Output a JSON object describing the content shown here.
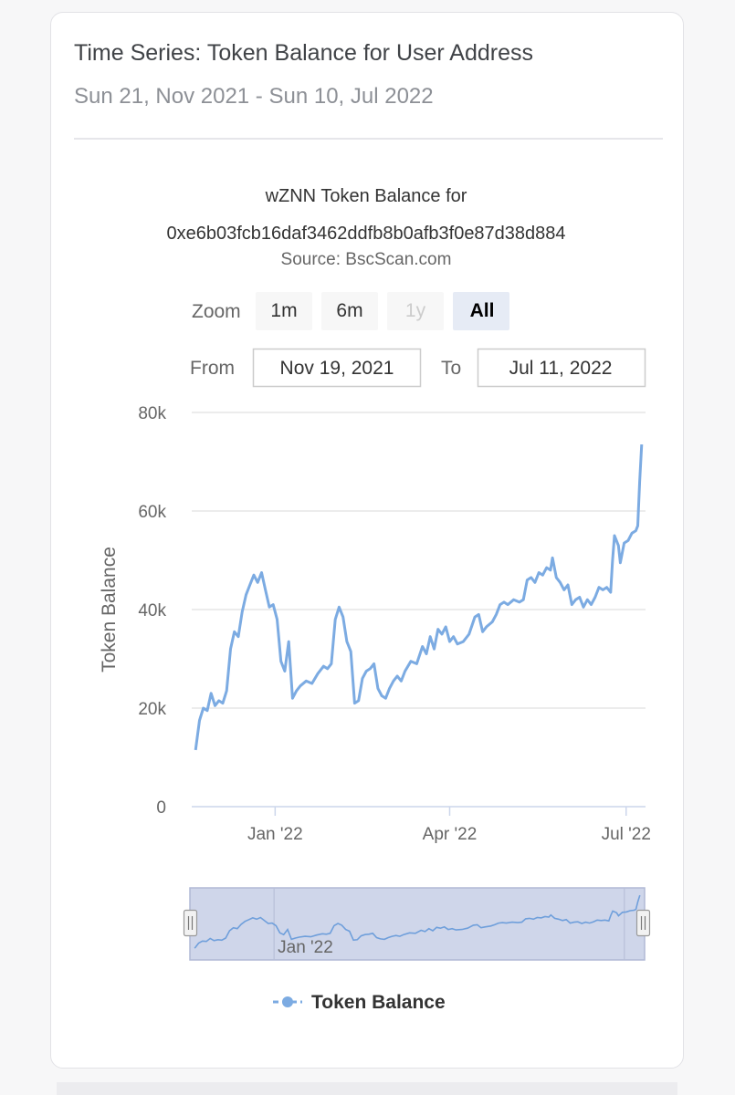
{
  "card": {
    "title": "Time Series: Token Balance for User Address",
    "subtitle": "Sun 21, Nov 2021 - Sun 10, Jul 2022"
  },
  "range_selector": {
    "zoom_label": "Zoom",
    "buttons": [
      {
        "label": "1m",
        "state": "normal"
      },
      {
        "label": "6m",
        "state": "normal"
      },
      {
        "label": "1y",
        "state": "disabled"
      },
      {
        "label": "All",
        "state": "selected"
      }
    ],
    "from_label": "From",
    "from_value": "Nov 19, 2021",
    "to_label": "To",
    "to_value": "Jul 11, 2022"
  },
  "colors": {
    "series": "#7cabe2",
    "navigator_fill": "#cfd6ea",
    "grid": "#e6e6e6"
  },
  "chart_data": {
    "type": "line",
    "title_line1": "wZNN Token Balance for",
    "title_line2": "0xe6b03fcb16daf3462ddfb8b0afb3f0e87d38d884",
    "subtitle": "Source: BscScan.com",
    "ylabel": "Token Balance",
    "ylim": [
      0,
      80000
    ],
    "yticks": [
      0,
      20000,
      40000,
      60000,
      80000
    ],
    "ytick_labels": [
      "0",
      "20k",
      "40k",
      "60k",
      "80k"
    ],
    "xlim": [
      "2021-11-19",
      "2022-07-11"
    ],
    "xticks": [
      {
        "date": "2022-01-01",
        "label": "Jan '22"
      },
      {
        "date": "2022-04-01",
        "label": "Apr '22"
      },
      {
        "date": "2022-07-01",
        "label": "Jul '22"
      }
    ],
    "navigator_label": "Jan '22",
    "legend": "Token Balance",
    "series": [
      {
        "name": "Token Balance",
        "points": [
          [
            "2021-11-21",
            11500
          ],
          [
            "2021-11-23",
            17500
          ],
          [
            "2021-11-25",
            20000
          ],
          [
            "2021-11-27",
            19500
          ],
          [
            "2021-11-29",
            23000
          ],
          [
            "2021-12-01",
            20500
          ],
          [
            "2021-12-03",
            21500
          ],
          [
            "2021-12-05",
            21000
          ],
          [
            "2021-12-07",
            23500
          ],
          [
            "2021-12-09",
            32000
          ],
          [
            "2021-12-11",
            35500
          ],
          [
            "2021-12-13",
            34500
          ],
          [
            "2021-12-15",
            39500
          ],
          [
            "2021-12-17",
            43000
          ],
          [
            "2021-12-19",
            45000
          ],
          [
            "2021-12-21",
            47000
          ],
          [
            "2021-12-23",
            45500
          ],
          [
            "2021-12-25",
            47500
          ],
          [
            "2021-12-27",
            44000
          ],
          [
            "2021-12-29",
            40500
          ],
          [
            "2021-12-31",
            41000
          ],
          [
            "2022-01-02",
            38000
          ],
          [
            "2022-01-04",
            29500
          ],
          [
            "2022-01-06",
            27500
          ],
          [
            "2022-01-08",
            33500
          ],
          [
            "2022-01-10",
            22000
          ],
          [
            "2022-01-12",
            23500
          ],
          [
            "2022-01-14",
            24500
          ],
          [
            "2022-01-17",
            25500
          ],
          [
            "2022-01-20",
            25000
          ],
          [
            "2022-01-23",
            27000
          ],
          [
            "2022-01-26",
            28500
          ],
          [
            "2022-01-28",
            28000
          ],
          [
            "2022-01-30",
            29000
          ],
          [
            "2022-02-01",
            38000
          ],
          [
            "2022-02-03",
            40500
          ],
          [
            "2022-02-05",
            38500
          ],
          [
            "2022-02-07",
            33500
          ],
          [
            "2022-02-09",
            31500
          ],
          [
            "2022-02-11",
            21000
          ],
          [
            "2022-02-13",
            21500
          ],
          [
            "2022-02-15",
            26000
          ],
          [
            "2022-02-17",
            27500
          ],
          [
            "2022-02-19",
            28000
          ],
          [
            "2022-02-21",
            29000
          ],
          [
            "2022-02-23",
            24000
          ],
          [
            "2022-02-25",
            22500
          ],
          [
            "2022-02-27",
            22000
          ],
          [
            "2022-03-01",
            24000
          ],
          [
            "2022-03-03",
            25500
          ],
          [
            "2022-03-05",
            26500
          ],
          [
            "2022-03-07",
            25500
          ],
          [
            "2022-03-09",
            27500
          ],
          [
            "2022-03-12",
            29500
          ],
          [
            "2022-03-15",
            29000
          ],
          [
            "2022-03-18",
            32500
          ],
          [
            "2022-03-20",
            31000
          ],
          [
            "2022-03-22",
            34500
          ],
          [
            "2022-03-24",
            32000
          ],
          [
            "2022-03-26",
            36000
          ],
          [
            "2022-03-28",
            35000
          ],
          [
            "2022-03-30",
            36500
          ],
          [
            "2022-04-01",
            33500
          ],
          [
            "2022-04-03",
            34500
          ],
          [
            "2022-04-05",
            33000
          ],
          [
            "2022-04-08",
            33500
          ],
          [
            "2022-04-11",
            35000
          ],
          [
            "2022-04-14",
            38500
          ],
          [
            "2022-04-16",
            39000
          ],
          [
            "2022-04-18",
            35500
          ],
          [
            "2022-04-20",
            36500
          ],
          [
            "2022-04-23",
            37500
          ],
          [
            "2022-04-25",
            39000
          ],
          [
            "2022-04-27",
            41000
          ],
          [
            "2022-04-29",
            41500
          ],
          [
            "2022-05-01",
            41000
          ],
          [
            "2022-05-04",
            42000
          ],
          [
            "2022-05-07",
            41500
          ],
          [
            "2022-05-09",
            42000
          ],
          [
            "2022-05-11",
            46000
          ],
          [
            "2022-05-13",
            46500
          ],
          [
            "2022-05-15",
            45500
          ],
          [
            "2022-05-17",
            47500
          ],
          [
            "2022-05-19",
            47000
          ],
          [
            "2022-05-21",
            48500
          ],
          [
            "2022-05-23",
            48000
          ],
          [
            "2022-05-24",
            50500
          ],
          [
            "2022-05-26",
            46500
          ],
          [
            "2022-05-28",
            45500
          ],
          [
            "2022-05-30",
            44000
          ],
          [
            "2022-06-01",
            45000
          ],
          [
            "2022-06-03",
            41000
          ],
          [
            "2022-06-05",
            42000
          ],
          [
            "2022-06-07",
            42500
          ],
          [
            "2022-06-09",
            40500
          ],
          [
            "2022-06-11",
            42000
          ],
          [
            "2022-06-13",
            41000
          ],
          [
            "2022-06-15",
            42500
          ],
          [
            "2022-06-17",
            44500
          ],
          [
            "2022-06-19",
            44000
          ],
          [
            "2022-06-21",
            44500
          ],
          [
            "2022-06-23",
            43500
          ],
          [
            "2022-06-24",
            50000
          ],
          [
            "2022-06-25",
            55000
          ],
          [
            "2022-06-27",
            53000
          ],
          [
            "2022-06-28",
            49500
          ],
          [
            "2022-06-30",
            53500
          ],
          [
            "2022-07-02",
            54000
          ],
          [
            "2022-07-04",
            55500
          ],
          [
            "2022-07-06",
            56000
          ],
          [
            "2022-07-07",
            57000
          ],
          [
            "2022-07-08",
            66000
          ],
          [
            "2022-07-09",
            73500
          ]
        ]
      }
    ]
  }
}
